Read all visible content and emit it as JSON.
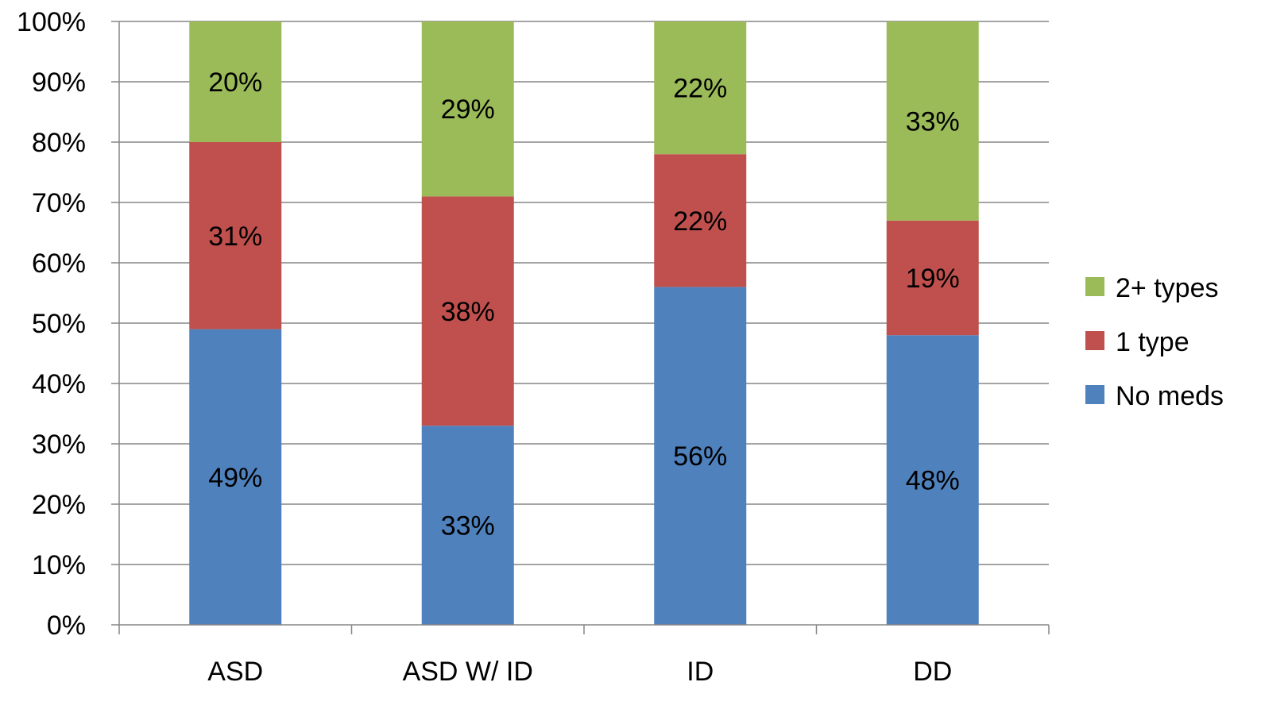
{
  "chart_data": {
    "type": "bar",
    "stacked": true,
    "normalized": true,
    "categories": [
      "ASD",
      "ASD W/ ID",
      "ID",
      "DD"
    ],
    "series": [
      {
        "name": "No meds",
        "values": [
          49,
          33,
          56,
          48
        ],
        "labels": [
          "49%",
          "33%",
          "56%",
          "48%"
        ],
        "color": "#4F81BD"
      },
      {
        "name": "1 type",
        "values": [
          31,
          38,
          22,
          19
        ],
        "labels": [
          "31%",
          "38%",
          "22%",
          "19%"
        ],
        "color": "#C0504D"
      },
      {
        "name": "2+ types",
        "values": [
          20,
          29,
          22,
          33
        ],
        "labels": [
          "20%",
          "29%",
          "22%",
          "33%"
        ],
        "color": "#9BBB59"
      }
    ],
    "ylim": [
      0,
      100
    ],
    "yticks": [
      "0%",
      "10%",
      "20%",
      "30%",
      "40%",
      "50%",
      "60%",
      "70%",
      "80%",
      "90%",
      "100%"
    ],
    "grid": true,
    "legend": {
      "placement": "right",
      "order": [
        "2+ types",
        "1 type",
        "No meds"
      ]
    },
    "title": "",
    "xlabel": "",
    "ylabel": ""
  }
}
